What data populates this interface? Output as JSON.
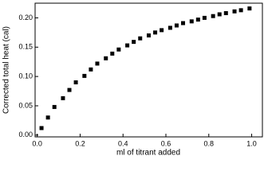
{
  "chart_data": {
    "type": "scatter",
    "x_label": "ml of titrant added",
    "y_label": "Corrected total heat (cal)",
    "color": "#000000",
    "x": [
      0.02,
      0.05,
      0.08,
      0.12,
      0.15,
      0.18,
      0.22,
      0.25,
      0.28,
      0.32,
      0.35,
      0.38,
      0.42,
      0.45,
      0.48,
      0.52,
      0.55,
      0.58,
      0.62,
      0.65,
      0.68,
      0.72,
      0.75,
      0.78,
      0.82,
      0.85,
      0.88,
      0.92,
      0.95,
      0.99
    ],
    "values": [
      0.012,
      0.03,
      0.048,
      0.063,
      0.077,
      0.09,
      0.101,
      0.112,
      0.122,
      0.131,
      0.139,
      0.146,
      0.153,
      0.159,
      0.165,
      0.17,
      0.175,
      0.179,
      0.183,
      0.187,
      0.191,
      0.194,
      0.197,
      0.2,
      0.203,
      0.206,
      0.208,
      0.211,
      0.213,
      0.216
    ],
    "xlim": [
      -0.01,
      1.05
    ],
    "ylim": [
      -0.003,
      0.225
    ],
    "xticks": [
      {
        "value": 0,
        "label": "0.0"
      },
      0.2,
      0.4,
      0.6,
      0.8,
      {
        "value": 1,
        "label": "1.0"
      }
    ],
    "yticks": [
      {
        "value": 0,
        "label": "0.00"
      },
      0.05,
      {
        "value": 0.1,
        "label": "0.10"
      },
      0.15,
      {
        "value": 0.2,
        "label": "0.20"
      }
    ]
  }
}
